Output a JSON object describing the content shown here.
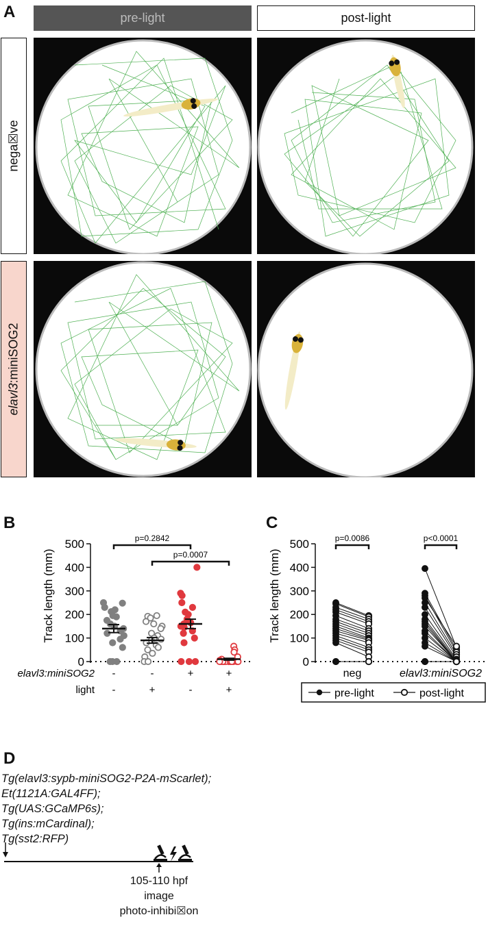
{
  "panel_A": {
    "letter": "A",
    "columns": [
      "pre-light",
      "post-light"
    ],
    "rows": [
      {
        "label": "nega☒ve",
        "label_italic": "",
        "label_rest": ""
      },
      {
        "label": "",
        "label_italic": "elavl3",
        "label_rest": ":miniSOG2"
      }
    ],
    "colors": {
      "pre_box": "#555555",
      "pre_text": "#bdbdbd",
      "row2_box": "#f8d6cc",
      "track": "#4caf50"
    }
  },
  "panel_B": {
    "letter": "B",
    "chart_data": {
      "type": "scatter",
      "ylabel": "Track length (mm)",
      "ylim": [
        0,
        500
      ],
      "yticks": [
        "0",
        "100",
        "200",
        "300",
        "400",
        "500"
      ],
      "factor_rows": [
        {
          "name": "elavl3:miniSOG2",
          "values": [
            "-",
            "-",
            "+",
            "+"
          ]
        },
        {
          "name": "light",
          "values": [
            "-",
            "+",
            "-",
            "+"
          ]
        }
      ],
      "significance": [
        {
          "label": "p=0.2842",
          "from": 0,
          "to": 2
        },
        {
          "label": "p=0.0007",
          "from": 1,
          "to": 3
        }
      ],
      "series": [
        {
          "color": "#808080",
          "filled": true,
          "mean": 140,
          "sem": 17,
          "values": [
            250,
            248,
            230,
            220,
            212,
            195,
            190,
            175,
            160,
            150,
            140,
            130,
            120,
            110,
            95,
            80,
            60,
            0,
            0,
            0
          ]
        },
        {
          "color": "#808080",
          "filled": false,
          "mean": 90,
          "sem": 12,
          "values": [
            195,
            192,
            185,
            170,
            160,
            150,
            140,
            120,
            110,
            100,
            95,
            90,
            80,
            70,
            60,
            50,
            35,
            20,
            0,
            0
          ]
        },
        {
          "color": "#e0393e",
          "filled": true,
          "mean": 160,
          "sem": 20,
          "values": [
            400,
            290,
            280,
            250,
            230,
            210,
            200,
            180,
            175,
            165,
            160,
            150,
            145,
            130,
            120,
            100,
            80,
            0,
            0,
            0
          ]
        },
        {
          "color": "#e0393e",
          "filled": false,
          "mean": 10,
          "sem": 4,
          "values": [
            65,
            50,
            40,
            20,
            10,
            5,
            0,
            0,
            0,
            0,
            0,
            0,
            0,
            0,
            0,
            0,
            0,
            0,
            0,
            0
          ]
        }
      ]
    }
  },
  "panel_C": {
    "letter": "C",
    "chart_data": {
      "type": "line",
      "ylabel": "Track length (mm)",
      "ylim": [
        0,
        500
      ],
      "yticks": [
        "0",
        "100",
        "200",
        "300",
        "400",
        "500"
      ],
      "groups": [
        "neg",
        "elavl3:miniSOG2"
      ],
      "significance": [
        "p=0.0086",
        "p<0.0001"
      ],
      "series": [
        {
          "name": "pre-light",
          "filled": true
        },
        {
          "name": "post-light",
          "filled": false
        }
      ],
      "pairs": [
        [
          [
            250,
            195
          ],
          [
            245,
            190
          ],
          [
            230,
            180
          ],
          [
            220,
            170
          ],
          [
            210,
            160
          ],
          [
            195,
            140
          ],
          [
            180,
            130
          ],
          [
            170,
            120
          ],
          [
            160,
            110
          ],
          [
            150,
            100
          ],
          [
            140,
            95
          ],
          [
            130,
            90
          ],
          [
            120,
            80
          ],
          [
            110,
            60
          ],
          [
            100,
            50
          ],
          [
            90,
            40
          ],
          [
            80,
            20
          ],
          [
            0,
            0
          ],
          [
            0,
            0
          ],
          [
            0,
            0
          ]
        ],
        [
          [
            395,
            60
          ],
          [
            290,
            50
          ],
          [
            280,
            40
          ],
          [
            270,
            65
          ],
          [
            250,
            30
          ],
          [
            230,
            20
          ],
          [
            200,
            10
          ],
          [
            180,
            5
          ],
          [
            170,
            0
          ],
          [
            160,
            0
          ],
          [
            150,
            0
          ],
          [
            130,
            0
          ],
          [
            120,
            0
          ],
          [
            100,
            0
          ],
          [
            80,
            0
          ],
          [
            65,
            0
          ],
          [
            0,
            0
          ],
          [
            0,
            0
          ],
          [
            0,
            0
          ],
          [
            0,
            0
          ]
        ]
      ]
    }
  },
  "panel_D": {
    "letter": "D",
    "genotype": [
      "Tg(elavl3:sypb-miniSOG2-P2A-mScarlet);",
      "Et(1121A:GAL4FF);",
      "Tg(UAS:GCaMP6s);",
      "Tg(ins:mCardinal);",
      "Tg(sst2:RFP)"
    ],
    "timeline_labels": [
      "105-110 hpf",
      "image",
      "photo-inhibi☒on"
    ],
    "icons": [
      "microscope-icon",
      "lightning-icon",
      "microscope-icon"
    ]
  }
}
